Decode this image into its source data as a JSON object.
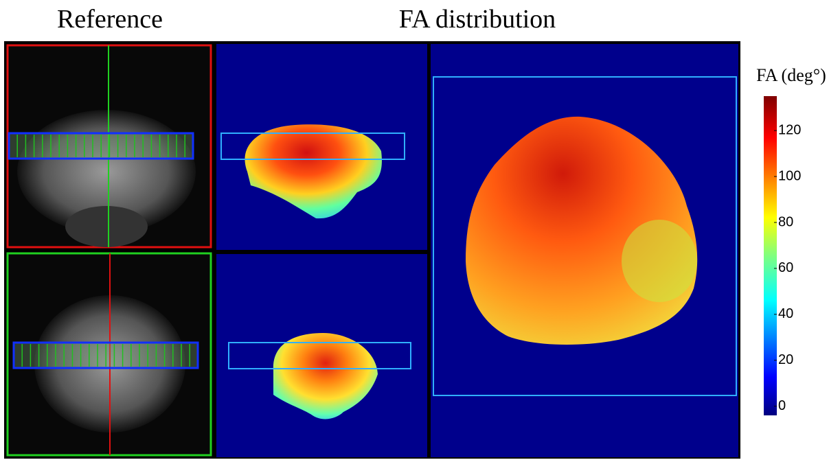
{
  "header": {
    "left_title": "Reference",
    "right_title": "FA distribution"
  },
  "colorbar": {
    "label": "FA (deg°)",
    "lim": [
      -4,
      135
    ],
    "ticks": [
      0,
      20,
      40,
      60,
      80,
      100,
      120
    ]
  }
}
